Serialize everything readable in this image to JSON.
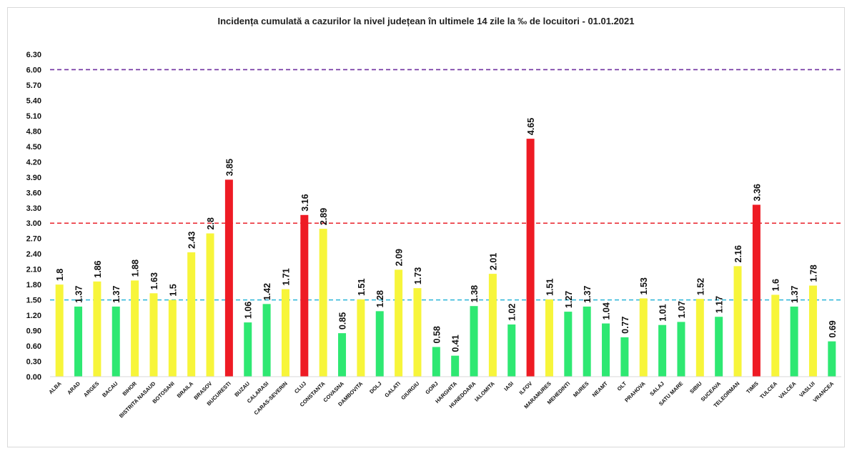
{
  "chart_data": {
    "type": "bar",
    "title": "Incidența cumulată a cazurilor la nivel județean în ultimele 14 zile la ‰ de locuitori - 01.01.2021",
    "categories": [
      "ALBA",
      "ARAD",
      "ARGES",
      "BACAU",
      "BIHOR",
      "BISTRITA NASAUD",
      "BOTOSANI",
      "BRAILA",
      "BRASOV",
      "BUCURESTI",
      "BUZAU",
      "CALARASI",
      "CARAS-SEVERIN",
      "CLUJ",
      "CONSTANTA",
      "COVASNA",
      "DAMBOVITA",
      "DOLJ",
      "GALATI",
      "GIURGIU",
      "GORJ",
      "HARGHITA",
      "HUNEDOARA",
      "IALOMITA",
      "IASI",
      "ILFOV",
      "MARAMURES",
      "MEHEDINTI",
      "MURES",
      "NEAMT",
      "OLT",
      "PRAHOVA",
      "SALAJ",
      "SATU MARE",
      "SIBIU",
      "SUCEAVA",
      "TELEORMAN",
      "TIMIS",
      "TULCEA",
      "VALCEA",
      "VASLUI",
      "VRANCEA"
    ],
    "values": [
      1.8,
      1.37,
      1.86,
      1.37,
      1.88,
      1.63,
      1.5,
      2.43,
      2.8,
      3.85,
      1.06,
      1.42,
      1.71,
      3.16,
      2.89,
      0.85,
      1.51,
      1.28,
      2.09,
      1.73,
      0.58,
      0.41,
      1.38,
      2.01,
      1.02,
      4.65,
      1.51,
      1.27,
      1.37,
      1.04,
      0.77,
      1.53,
      1.01,
      1.07,
      1.52,
      1.17,
      2.16,
      3.36,
      1.6,
      1.37,
      1.78,
      0.69
    ],
    "ylim": [
      0,
      6.3
    ],
    "yticks": [
      "0.00",
      "0.30",
      "0.60",
      "0.90",
      "1.20",
      "1.50",
      "1.80",
      "2.10",
      "2.40",
      "2.70",
      "3.00",
      "3.30",
      "3.60",
      "3.90",
      "4.20",
      "4.50",
      "4.80",
      "5.10",
      "5.40",
      "5.70",
      "6.00",
      "6.30"
    ],
    "thresholds": [
      {
        "value": 1.5,
        "color": "#2ab5d9"
      },
      {
        "value": 3.0,
        "color": "#e8202a"
      },
      {
        "value": 6.0,
        "color": "#7030a0"
      }
    ],
    "colors": {
      "green": "#2ee872",
      "yellow": "#f7f53a",
      "red": "#ee1b24"
    },
    "grid": false,
    "legend": "none",
    "xlabel": "",
    "ylabel": ""
  }
}
